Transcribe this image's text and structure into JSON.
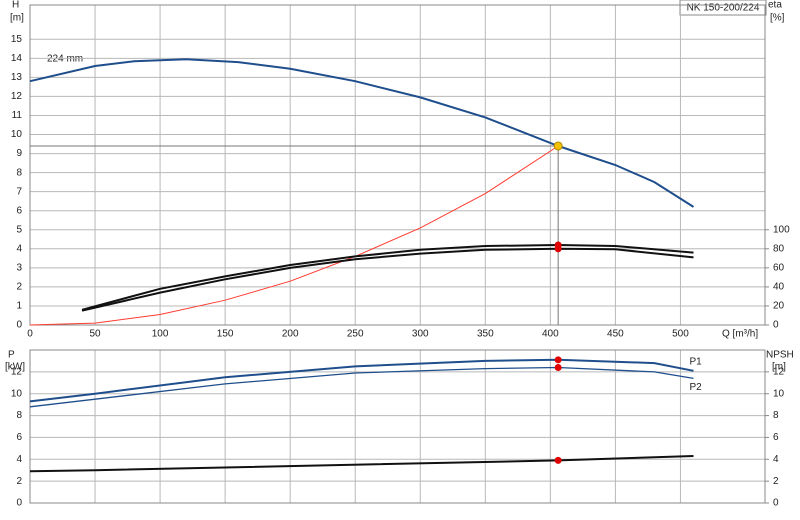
{
  "chart_data": [
    {
      "type": "line",
      "title": "NK 150-200/224",
      "y_label": "H",
      "y_unit": "[m]",
      "y2_label": "eta",
      "y2_unit": "[%]",
      "x_label": "Q [m³/h]",
      "annotations": [
        "224 mm"
      ],
      "xlim": [
        0,
        565
      ],
      "xticks": [
        0,
        50,
        100,
        150,
        200,
        250,
        300,
        350,
        400,
        450,
        500
      ],
      "ylim": [
        0,
        16.8
      ],
      "yticks": [
        0,
        1,
        2,
        3,
        4,
        5,
        6,
        7,
        8,
        9,
        10,
        11,
        12,
        13,
        14,
        15
      ],
      "y2lim": [
        0,
        336
      ],
      "y2ticks": [
        0,
        20,
        40,
        60,
        80,
        100
      ],
      "grid": true,
      "xtick_labels": true,
      "duty_point": {
        "x": 406,
        "y": 9.4,
        "color": "#f2c200"
      },
      "series": [
        {
          "color": "#1f4e8c",
          "width": 2,
          "x": [
            0,
            50,
            80,
            120,
            160,
            200,
            250,
            300,
            350,
            406,
            450,
            480,
            510
          ],
          "values": [
            12.8,
            13.6,
            13.85,
            13.95,
            13.8,
            13.45,
            12.8,
            11.95,
            10.9,
            9.4,
            8.4,
            7.5,
            6.2
          ]
        },
        {
          "color": "#ff3b30",
          "width": 1,
          "x": [
            0,
            50,
            100,
            150,
            200,
            250,
            300,
            350,
            406
          ],
          "values": [
            0,
            0.1,
            0.55,
            1.3,
            2.3,
            3.6,
            5.1,
            6.9,
            9.4
          ]
        },
        {
          "color": "#111111",
          "width": 2,
          "axis": "y2",
          "x": [
            40,
            100,
            150,
            200,
            250,
            300,
            350,
            406,
            450,
            510
          ],
          "values": [
            16,
            38,
            51,
            63,
            72,
            79,
            83,
            84,
            83,
            76
          ]
        },
        {
          "color": "#111111",
          "width": 2,
          "axis": "y2",
          "x": [
            40,
            100,
            150,
            200,
            250,
            300,
            350,
            406,
            450,
            510
          ],
          "values": [
            15,
            34,
            48,
            60,
            69,
            75,
            79,
            80,
            79.5,
            71
          ]
        },
        {
          "color": "#e00000",
          "style": "point",
          "axis": "y2",
          "x": [
            406
          ],
          "values": [
            84
          ]
        },
        {
          "color": "#e00000",
          "style": "point",
          "axis": "y2",
          "x": [
            406
          ],
          "values": [
            80
          ]
        }
      ]
    },
    {
      "type": "line",
      "y_label": "P",
      "y_unit": "[kW]",
      "y2_label": "NPSH",
      "y2_unit": "[m]",
      "xlim": [
        0,
        565
      ],
      "xticks": [
        0,
        50,
        100,
        150,
        200,
        250,
        300,
        350,
        400,
        450,
        500
      ],
      "ylim": [
        0,
        14
      ],
      "yticks": [
        0,
        2,
        4,
        6,
        8,
        10,
        12
      ],
      "y2lim": [
        0,
        14
      ],
      "y2ticks": [
        0,
        2,
        4,
        6,
        8,
        10,
        12
      ],
      "grid": true,
      "xtick_labels": false,
      "series": [
        {
          "name": "P1",
          "color": "#1f4e8c",
          "width": 2,
          "x": [
            0,
            50,
            150,
            250,
            350,
            406,
            480,
            510
          ],
          "values": [
            9.3,
            10.0,
            11.5,
            12.5,
            13.0,
            13.1,
            12.8,
            12.1
          ]
        },
        {
          "name": "P2",
          "color": "#1f4e8c",
          "width": 1.3,
          "x": [
            0,
            50,
            150,
            250,
            350,
            406,
            480,
            510
          ],
          "values": [
            8.8,
            9.5,
            10.9,
            11.9,
            12.3,
            12.4,
            12.0,
            11.4
          ]
        },
        {
          "color": "#111111",
          "width": 2,
          "axis": "y2",
          "x": [
            0,
            50,
            406,
            510
          ],
          "values": [
            2.9,
            3.0,
            3.9,
            4.3
          ]
        },
        {
          "color": "#e00000",
          "style": "point",
          "x": [
            406
          ],
          "values": [
            13.1
          ]
        },
        {
          "color": "#e00000",
          "style": "point",
          "x": [
            406
          ],
          "values": [
            12.4
          ]
        },
        {
          "color": "#e00000",
          "style": "point",
          "axis": "y2",
          "x": [
            406
          ],
          "values": [
            3.9
          ]
        }
      ]
    }
  ]
}
